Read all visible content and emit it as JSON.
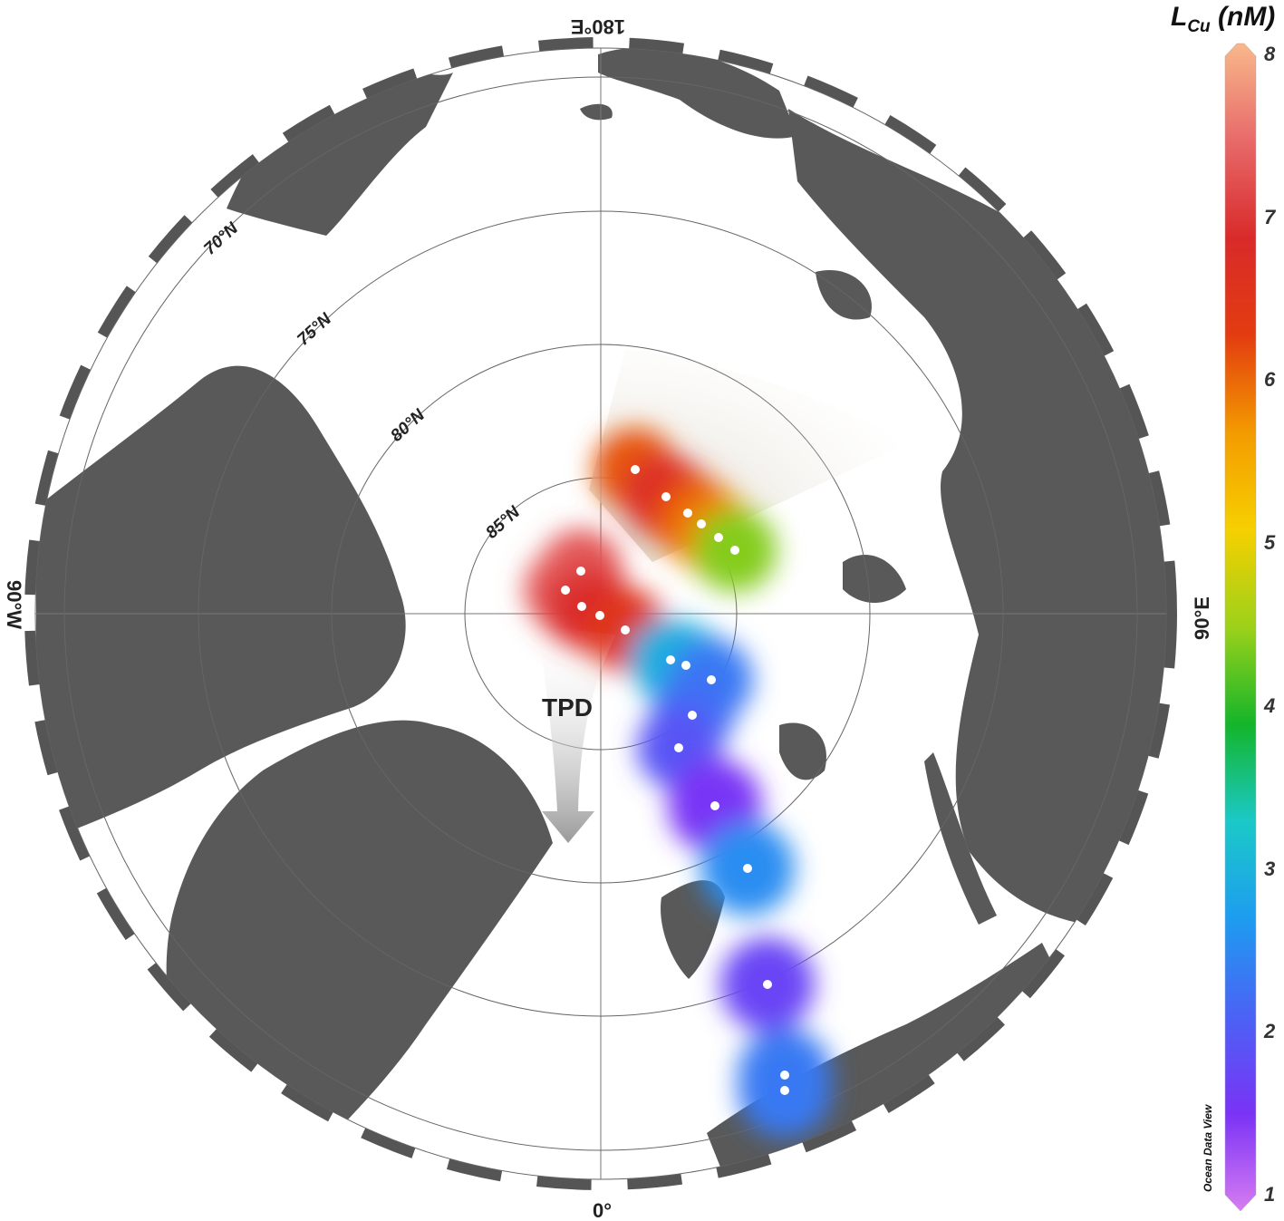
{
  "title": "L",
  "title_sub": "Cu",
  "title_unit": "(nM)",
  "watermark": "Ocean Data View",
  "map": {
    "projection": "north polar stereographic",
    "longitude_labels": {
      "top": "180°E",
      "left": "90°W",
      "right": "90°E",
      "bottom": "0°"
    },
    "latitude_labels": [
      "70°N",
      "75°N",
      "80°N",
      "85°N"
    ],
    "arrow_label": "TPD",
    "land_color": "#595959",
    "ocean_color": "#ffffff"
  },
  "chart_data": {
    "type": "map",
    "colorbar": {
      "label": "LCu (nM)",
      "range": [
        1,
        8
      ],
      "ticks": [
        "1",
        "2",
        "3",
        "4",
        "5",
        "6",
        "7",
        "8"
      ],
      "colormap": [
        "#d77cf2",
        "#7a33f5",
        "#4b62f5",
        "#1e9cf0",
        "#1bc9c8",
        "#14b52a",
        "#9cd11a",
        "#f6d000",
        "#f39b00",
        "#e33c10",
        "#d92a2a",
        "#e86a6a",
        "#f8b88b"
      ]
    },
    "stations_lcu_nM": [
      6.1,
      6.8,
      6.3,
      6.0,
      5.8,
      4.4,
      7.2,
      7.3,
      7.0,
      6.8,
      6.5,
      3.0,
      3.0,
      2.4,
      2.3,
      2.0,
      1.6,
      2.6,
      1.8,
      2.4,
      2.4
    ]
  }
}
